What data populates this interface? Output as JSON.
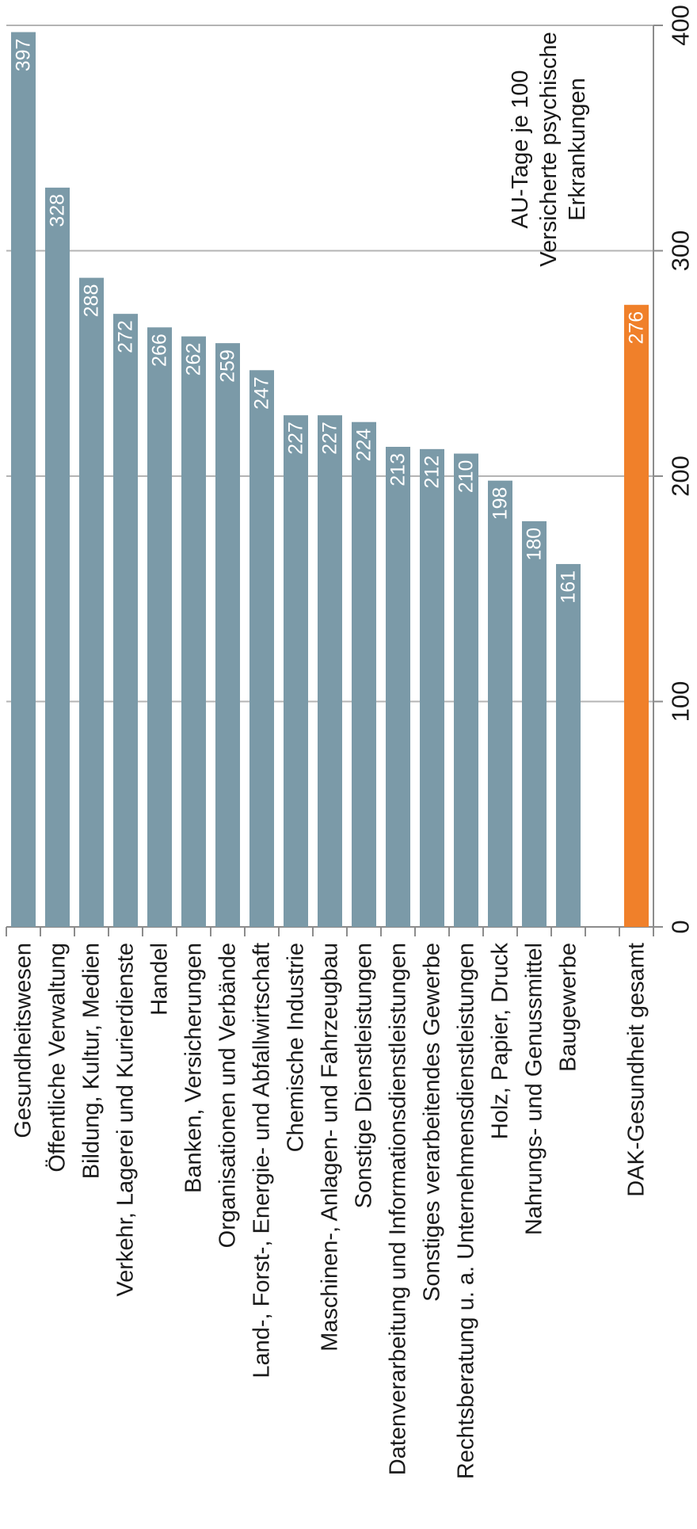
{
  "chart_data": {
    "type": "bar",
    "orientation": "horizontal",
    "categories": [
      "Gesundheitswesen",
      "Öffentliche Verwaltung",
      "Bildung, Kultur, Medien",
      "Verkehr, Lagerei und Kurierdienste",
      "Handel",
      "Banken, Versicherungen",
      "Organisationen und Verbände",
      "Land-, Forst-,  Energie- und Abfallwirtschaft",
      "Chemische Industrie",
      "Maschinen-, Anlagen- und Fahrzeugbau",
      "Sonstige Dienstleistungen",
      "Datenverarbeitung und Informationsdienstleistungen",
      "Sonstiges verarbeitendes Gewerbe",
      "Rechtsberatung u. a. Unternehmensdienstleistungen",
      "Holz, Papier, Druck",
      "Nahrungs- und Genussmittel",
      "Baugewerbe",
      "",
      "DAK-Gesundheit gesamt"
    ],
    "values": [
      397,
      328,
      288,
      272,
      266,
      262,
      259,
      247,
      227,
      227,
      224,
      213,
      212,
      210,
      198,
      180,
      161,
      null,
      276
    ],
    "value_labels": [
      "397",
      "328",
      "288",
      "272",
      "266",
      "262",
      "259",
      "247",
      "227",
      "227",
      "224",
      "213",
      "212",
      "210",
      "198",
      "180",
      "161",
      "",
      "276"
    ],
    "highlight_index": 18,
    "colors": {
      "bar": "#7b9aa8",
      "highlight": "#f0802a",
      "grid": "#b4b4b4",
      "axis": "#8c8c8c"
    },
    "xlim": [
      0,
      400
    ],
    "ticks": [
      0,
      100,
      200,
      300,
      400
    ],
    "tick_labels": [
      "0",
      "100",
      "200",
      "300",
      "400"
    ],
    "grid": true,
    "annotation": [
      "AU-Tage je 100",
      "Versicherte psychische",
      "Erkrankungen"
    ]
  }
}
